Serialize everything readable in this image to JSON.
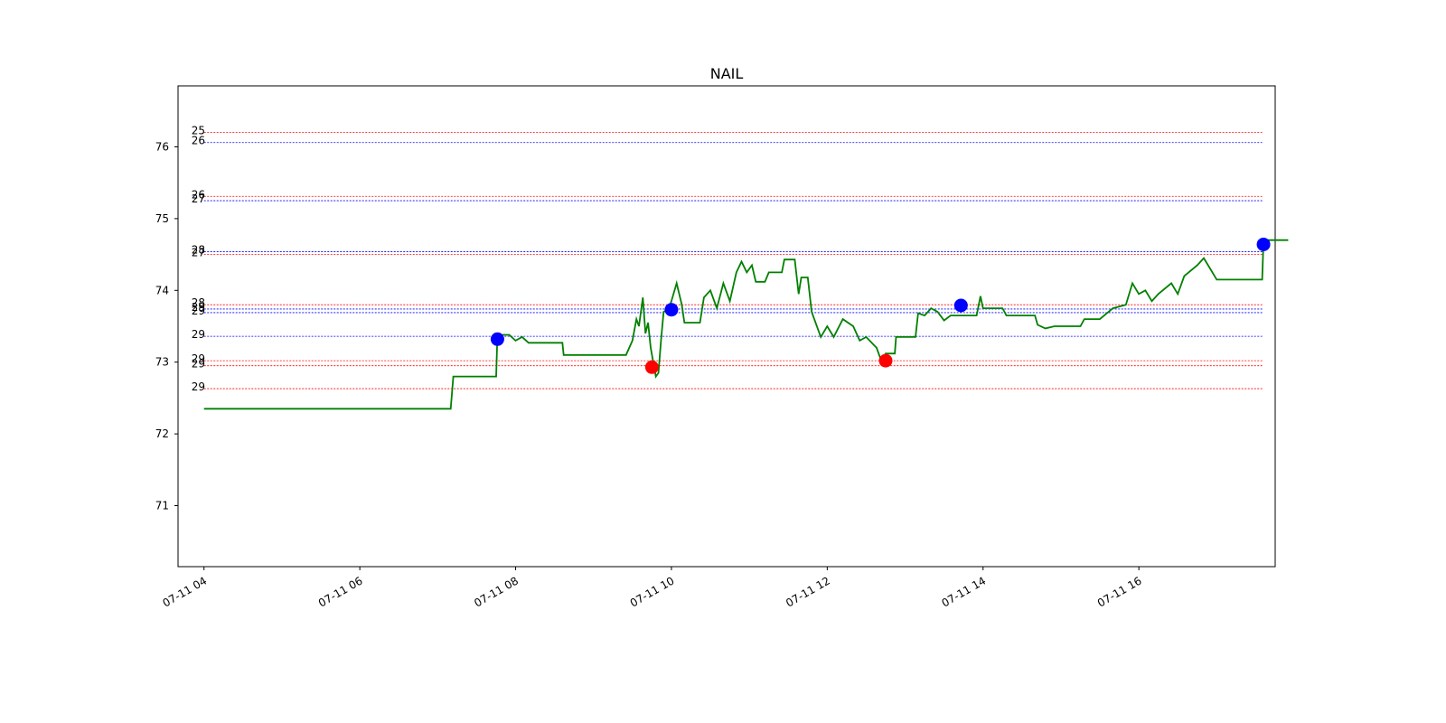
{
  "chart_data": {
    "type": "line",
    "title": "NAIL",
    "xlabel": "",
    "ylabel": "",
    "xlim": [
      "07-11 03:40",
      "07-11 17:45"
    ],
    "ylim": [
      70.15,
      76.85
    ],
    "x_ticks": [
      "07-11 04",
      "07-11 06",
      "07-11 08",
      "07-11 10",
      "07-11 12",
      "07-11 14",
      "07-11 16"
    ],
    "y_ticks": [
      71,
      72,
      73,
      74,
      75,
      76
    ],
    "grid": false,
    "legend": "none",
    "series": [
      {
        "color": "#008000",
        "points": [
          [
            "07-11 04:00",
            72.35
          ],
          [
            "07-11 07:10",
            72.35
          ],
          [
            "07-11 07:12",
            72.8
          ],
          [
            "07-11 07:45",
            72.8
          ],
          [
            "07-11 07:46",
            73.38
          ],
          [
            "07-11 07:55",
            73.38
          ],
          [
            "07-11 08:00",
            73.3
          ],
          [
            "07-11 08:05",
            73.35
          ],
          [
            "07-11 08:10",
            73.27
          ],
          [
            "07-11 08:36",
            73.27
          ],
          [
            "07-11 08:37",
            73.1
          ],
          [
            "07-11 09:25",
            73.1
          ],
          [
            "07-11 09:30",
            73.3
          ],
          [
            "07-11 09:33",
            73.6
          ],
          [
            "07-11 09:35",
            73.5
          ],
          [
            "07-11 09:38",
            73.9
          ],
          [
            "07-11 09:40",
            73.4
          ],
          [
            "07-11 09:42",
            73.55
          ],
          [
            "07-11 09:44",
            73.2
          ],
          [
            "07-11 09:46",
            73.0
          ],
          [
            "07-11 09:48",
            72.8
          ],
          [
            "07-11 09:50",
            72.85
          ],
          [
            "07-11 09:52",
            73.3
          ],
          [
            "07-11 09:54",
            73.7
          ],
          [
            "07-11 09:58",
            73.75
          ],
          [
            "07-11 10:00",
            73.85
          ],
          [
            "07-11 10:04",
            74.1
          ],
          [
            "07-11 10:08",
            73.8
          ],
          [
            "07-11 10:10",
            73.55
          ],
          [
            "07-11 10:22",
            73.55
          ],
          [
            "07-11 10:25",
            73.9
          ],
          [
            "07-11 10:30",
            74.0
          ],
          [
            "07-11 10:35",
            73.75
          ],
          [
            "07-11 10:40",
            74.1
          ],
          [
            "07-11 10:45",
            73.85
          ],
          [
            "07-11 10:50",
            74.25
          ],
          [
            "07-11 10:54",
            74.4
          ],
          [
            "07-11 10:58",
            74.25
          ],
          [
            "07-11 11:02",
            74.35
          ],
          [
            "07-11 11:05",
            74.12
          ],
          [
            "07-11 11:12",
            74.12
          ],
          [
            "07-11 11:15",
            74.25
          ],
          [
            "07-11 11:25",
            74.25
          ],
          [
            "07-11 11:27",
            74.43
          ],
          [
            "07-11 11:35",
            74.43
          ],
          [
            "07-11 11:38",
            73.95
          ],
          [
            "07-11 11:40",
            74.18
          ],
          [
            "07-11 11:45",
            74.18
          ],
          [
            "07-11 11:48",
            73.7
          ],
          [
            "07-11 11:55",
            73.35
          ],
          [
            "07-11 12:00",
            73.5
          ],
          [
            "07-11 12:05",
            73.35
          ],
          [
            "07-11 12:12",
            73.6
          ],
          [
            "07-11 12:20",
            73.5
          ],
          [
            "07-11 12:25",
            73.3
          ],
          [
            "07-11 12:30",
            73.35
          ],
          [
            "07-11 12:38",
            73.2
          ],
          [
            "07-11 12:42",
            73.0
          ],
          [
            "07-11 12:45",
            73.12
          ],
          [
            "07-11 12:52",
            73.12
          ],
          [
            "07-11 12:53",
            73.35
          ],
          [
            "07-11 13:08",
            73.35
          ],
          [
            "07-11 13:10",
            73.68
          ],
          [
            "07-11 13:15",
            73.65
          ],
          [
            "07-11 13:20",
            73.75
          ],
          [
            "07-11 13:25",
            73.7
          ],
          [
            "07-11 13:30",
            73.58
          ],
          [
            "07-11 13:35",
            73.65
          ],
          [
            "07-11 13:55",
            73.65
          ],
          [
            "07-11 13:58",
            73.92
          ],
          [
            "07-11 14:00",
            73.75
          ],
          [
            "07-11 14:15",
            73.75
          ],
          [
            "07-11 14:18",
            73.65
          ],
          [
            "07-11 14:40",
            73.65
          ],
          [
            "07-11 14:42",
            73.52
          ],
          [
            "07-11 14:48",
            73.47
          ],
          [
            "07-11 14:55",
            73.5
          ],
          [
            "07-11 15:15",
            73.5
          ],
          [
            "07-11 15:18",
            73.6
          ],
          [
            "07-11 15:30",
            73.6
          ],
          [
            "07-11 15:40",
            73.75
          ],
          [
            "07-11 15:50",
            73.8
          ],
          [
            "07-11 15:55",
            74.1
          ],
          [
            "07-11 16:00",
            73.95
          ],
          [
            "07-11 16:05",
            74.0
          ],
          [
            "07-11 16:10",
            73.85
          ],
          [
            "07-11 16:15",
            73.95
          ],
          [
            "07-11 16:25",
            74.1
          ],
          [
            "07-11 16:30",
            73.95
          ],
          [
            "07-11 16:35",
            74.2
          ],
          [
            "07-11 16:45",
            74.35
          ],
          [
            "07-11 16:50",
            74.45
          ],
          [
            "07-11 16:55",
            74.3
          ],
          [
            "07-11 17:00",
            74.15
          ],
          [
            "07-11 17:35",
            74.15
          ],
          [
            "07-11 17:36",
            74.7
          ],
          [
            "07-11 17:55",
            74.7
          ]
        ]
      }
    ],
    "hlines": [
      {
        "label": "25",
        "y": 76.2,
        "color": "#ff0000"
      },
      {
        "label": "26",
        "y": 76.06,
        "color": "#0000ff"
      },
      {
        "label": "26",
        "y": 75.31,
        "color": "#ff0000"
      },
      {
        "label": "27",
        "y": 75.25,
        "color": "#0000ff"
      },
      {
        "label": "28",
        "y": 74.54,
        "color": "#0000ff"
      },
      {
        "label": "27",
        "y": 74.5,
        "color": "#ff0000"
      },
      {
        "label": "28",
        "y": 73.8,
        "color": "#ff0000"
      },
      {
        "label": "29",
        "y": 73.74,
        "color": "#0000ff"
      },
      {
        "label": "29",
        "y": 73.69,
        "color": "#0000ff"
      },
      {
        "label": "29",
        "y": 73.36,
        "color": "#0000ff"
      },
      {
        "label": "29",
        "y": 73.02,
        "color": "#ff0000"
      },
      {
        "label": "29",
        "y": 72.95,
        "color": "#ff0000"
      },
      {
        "label": "29",
        "y": 72.63,
        "color": "#ff0000"
      }
    ],
    "markers": [
      {
        "x": "07-11 07:46",
        "y": 73.32,
        "color": "#0000ff"
      },
      {
        "x": "07-11 09:45",
        "y": 72.93,
        "color": "#ff0000"
      },
      {
        "x": "07-11 10:00",
        "y": 73.73,
        "color": "#0000ff"
      },
      {
        "x": "07-11 12:45",
        "y": 73.02,
        "color": "#ff0000"
      },
      {
        "x": "07-11 13:43",
        "y": 73.79,
        "color": "#0000ff"
      },
      {
        "x": "07-11 17:36",
        "y": 74.64,
        "color": "#0000ff"
      }
    ]
  }
}
